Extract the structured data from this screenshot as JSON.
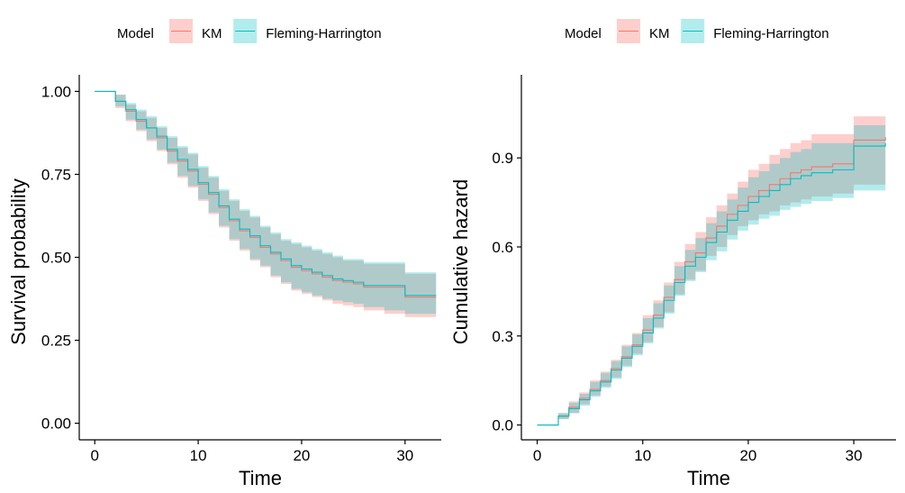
{
  "colors": {
    "km": "#F8766D",
    "km_fill": "#F8766D",
    "fh": "#00BFC4",
    "fh_fill": "#00BFC4",
    "axis": "#000000",
    "text": "#000000"
  },
  "chart_data": [
    {
      "type": "line",
      "step": true,
      "legend": {
        "title": "Model",
        "position": "top",
        "items": [
          "KM",
          "Fleming-Harrington"
        ]
      },
      "xlabel": "Time",
      "ylabel": "Survival probability",
      "xlim": [
        -1.5,
        33.5
      ],
      "ylim": [
        -0.05,
        1.05
      ],
      "xticks": [
        0,
        10,
        20,
        30
      ],
      "xtick_labels": [
        "0",
        "10",
        "20",
        "30"
      ],
      "yticks": [
        0,
        0.25,
        0.5,
        0.75,
        1.0
      ],
      "ytick_labels": [
        "0.00",
        "0.25",
        "0.50",
        "0.75",
        "1.00"
      ],
      "grid": false,
      "series": [
        {
          "name": "KM",
          "x": [
            0,
            2,
            3,
            4,
            5,
            6,
            7,
            8,
            9,
            10,
            11,
            12,
            13,
            14,
            15,
            16,
            17,
            18,
            19,
            20,
            21,
            22,
            23,
            24,
            25,
            26,
            28,
            30,
            33
          ],
          "y": [
            1.0,
            0.97,
            0.94,
            0.91,
            0.89,
            0.86,
            0.82,
            0.79,
            0.76,
            0.72,
            0.69,
            0.65,
            0.61,
            0.58,
            0.56,
            0.53,
            0.51,
            0.49,
            0.47,
            0.46,
            0.45,
            0.44,
            0.43,
            0.425,
            0.42,
            0.41,
            0.41,
            0.38,
            0.38
          ],
          "lower": [
            1.0,
            0.95,
            0.91,
            0.88,
            0.85,
            0.82,
            0.78,
            0.74,
            0.71,
            0.67,
            0.63,
            0.59,
            0.55,
            0.52,
            0.49,
            0.47,
            0.44,
            0.42,
            0.4,
            0.39,
            0.38,
            0.37,
            0.36,
            0.355,
            0.35,
            0.34,
            0.33,
            0.32,
            0.32
          ],
          "upper": [
            1.0,
            0.99,
            0.96,
            0.94,
            0.92,
            0.89,
            0.86,
            0.83,
            0.81,
            0.77,
            0.74,
            0.7,
            0.67,
            0.64,
            0.62,
            0.59,
            0.57,
            0.55,
            0.54,
            0.53,
            0.52,
            0.51,
            0.5,
            0.49,
            0.49,
            0.48,
            0.48,
            0.45,
            0.45
          ]
        },
        {
          "name": "Fleming-Harrington",
          "x": [
            0,
            2,
            3,
            4,
            5,
            6,
            7,
            8,
            9,
            10,
            11,
            12,
            13,
            14,
            15,
            16,
            17,
            18,
            19,
            20,
            21,
            22,
            23,
            24,
            25,
            26,
            28,
            30,
            33
          ],
          "y": [
            1.0,
            0.97,
            0.945,
            0.915,
            0.89,
            0.865,
            0.825,
            0.795,
            0.765,
            0.725,
            0.695,
            0.655,
            0.615,
            0.585,
            0.565,
            0.535,
            0.515,
            0.495,
            0.475,
            0.465,
            0.455,
            0.445,
            0.435,
            0.43,
            0.425,
            0.415,
            0.415,
            0.385,
            0.385
          ],
          "lower": [
            1.0,
            0.955,
            0.915,
            0.885,
            0.855,
            0.825,
            0.785,
            0.745,
            0.715,
            0.675,
            0.635,
            0.595,
            0.555,
            0.525,
            0.495,
            0.475,
            0.445,
            0.425,
            0.405,
            0.395,
            0.385,
            0.375,
            0.37,
            0.365,
            0.36,
            0.35,
            0.34,
            0.33,
            0.33
          ],
          "upper": [
            1.0,
            0.99,
            0.965,
            0.945,
            0.925,
            0.895,
            0.865,
            0.835,
            0.815,
            0.775,
            0.745,
            0.705,
            0.675,
            0.645,
            0.625,
            0.595,
            0.575,
            0.555,
            0.545,
            0.535,
            0.525,
            0.515,
            0.505,
            0.495,
            0.495,
            0.485,
            0.485,
            0.455,
            0.455
          ]
        }
      ]
    },
    {
      "type": "line",
      "step": true,
      "legend": {
        "title": "Model",
        "position": "top",
        "items": [
          "KM",
          "Fleming-Harrington"
        ]
      },
      "xlabel": "Time",
      "ylabel": "Cumulative hazard",
      "xlim": [
        -1.5,
        34
      ],
      "ylim": [
        -0.05,
        1.18
      ],
      "xticks": [
        0,
        10,
        20,
        30
      ],
      "xtick_labels": [
        "0",
        "10",
        "20",
        "30"
      ],
      "yticks": [
        0.0,
        0.3,
        0.6,
        0.9
      ],
      "ytick_labels": [
        "0.0",
        "0.3",
        "0.6",
        "0.9"
      ],
      "grid": false,
      "series": [
        {
          "name": "KM",
          "x": [
            0,
            2,
            3,
            4,
            5,
            6,
            7,
            8,
            9,
            10,
            11,
            12,
            13,
            14,
            15,
            16,
            17,
            18,
            19,
            20,
            21,
            22,
            23,
            24,
            25,
            26,
            28,
            30,
            33
          ],
          "y": [
            0.0,
            0.03,
            0.06,
            0.09,
            0.12,
            0.15,
            0.19,
            0.23,
            0.27,
            0.32,
            0.37,
            0.43,
            0.49,
            0.55,
            0.58,
            0.63,
            0.67,
            0.71,
            0.74,
            0.77,
            0.79,
            0.81,
            0.83,
            0.85,
            0.86,
            0.87,
            0.88,
            0.96,
            0.97
          ],
          "lower": [
            0.0,
            0.02,
            0.04,
            0.07,
            0.1,
            0.13,
            0.16,
            0.2,
            0.24,
            0.28,
            0.33,
            0.38,
            0.44,
            0.49,
            0.52,
            0.57,
            0.6,
            0.64,
            0.67,
            0.69,
            0.71,
            0.72,
            0.74,
            0.75,
            0.76,
            0.77,
            0.78,
            0.81,
            0.81
          ],
          "upper": [
            0.0,
            0.04,
            0.08,
            0.11,
            0.15,
            0.18,
            0.22,
            0.27,
            0.31,
            0.37,
            0.42,
            0.48,
            0.55,
            0.61,
            0.65,
            0.7,
            0.74,
            0.78,
            0.82,
            0.86,
            0.88,
            0.91,
            0.93,
            0.95,
            0.96,
            0.98,
            0.98,
            1.04,
            1.13
          ]
        },
        {
          "name": "Fleming-Harrington",
          "x": [
            0,
            2,
            3,
            4,
            5,
            6,
            7,
            8,
            9,
            10,
            11,
            12,
            13,
            14,
            15,
            16,
            17,
            18,
            19,
            20,
            21,
            22,
            23,
            24,
            25,
            26,
            28,
            30,
            33
          ],
          "y": [
            0.0,
            0.03,
            0.055,
            0.085,
            0.115,
            0.145,
            0.185,
            0.225,
            0.265,
            0.31,
            0.36,
            0.42,
            0.48,
            0.535,
            0.565,
            0.615,
            0.65,
            0.69,
            0.72,
            0.75,
            0.77,
            0.79,
            0.81,
            0.83,
            0.84,
            0.85,
            0.86,
            0.94,
            0.95
          ],
          "lower": [
            0.0,
            0.02,
            0.04,
            0.065,
            0.095,
            0.125,
            0.155,
            0.195,
            0.235,
            0.275,
            0.325,
            0.375,
            0.435,
            0.485,
            0.515,
            0.555,
            0.585,
            0.625,
            0.655,
            0.675,
            0.695,
            0.705,
            0.725,
            0.735,
            0.745,
            0.755,
            0.765,
            0.79,
            0.79
          ],
          "upper": [
            0.0,
            0.04,
            0.075,
            0.105,
            0.145,
            0.175,
            0.215,
            0.265,
            0.305,
            0.36,
            0.41,
            0.47,
            0.535,
            0.59,
            0.63,
            0.68,
            0.72,
            0.76,
            0.8,
            0.835,
            0.855,
            0.88,
            0.9,
            0.92,
            0.93,
            0.95,
            0.95,
            1.01,
            1.1
          ]
        }
      ]
    }
  ]
}
